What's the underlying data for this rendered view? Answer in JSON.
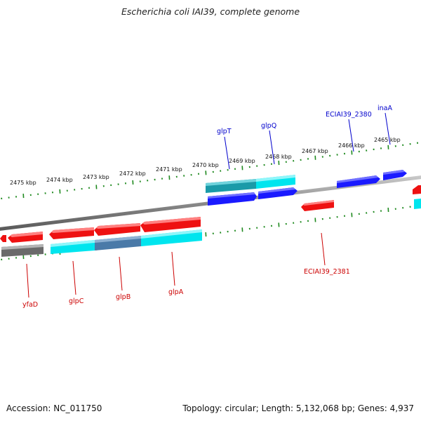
{
  "title": "Escherichia coli IAI39, complete genome",
  "accession": "Accession: NC_011750",
  "topology": "Topology: circular; Length: 5,132,068 bp; Genes: 4,937",
  "colors": {
    "backbone": "#808080",
    "tick": "#1f8a1f",
    "forward_gene": "#1a1aff",
    "reverse_gene": "#ee1111",
    "cyan_band": "#00e5ee",
    "teal_band": "#1a9aa8",
    "steel_band": "#4a7aa8",
    "grey_band": "#6a6a6a",
    "forward_label": "#0000cc",
    "reverse_label": "#cc0000"
  },
  "kbp_labels": [
    "2475 kbp",
    "2474 kbp",
    "2473 kbp",
    "2472 kbp",
    "2471 kbp",
    "2470 kbp",
    "2469 kbp",
    "2468 kbp",
    "2467 kbp",
    "2466 kbp",
    "2465 kbp"
  ],
  "forward_genes": [
    "glpT",
    "glpQ",
    "ECIAI39_2380",
    "inaA"
  ],
  "reverse_genes": [
    "yfaD",
    "glpC",
    "glpB",
    "glpA",
    "ECIAI39_2381"
  ]
}
